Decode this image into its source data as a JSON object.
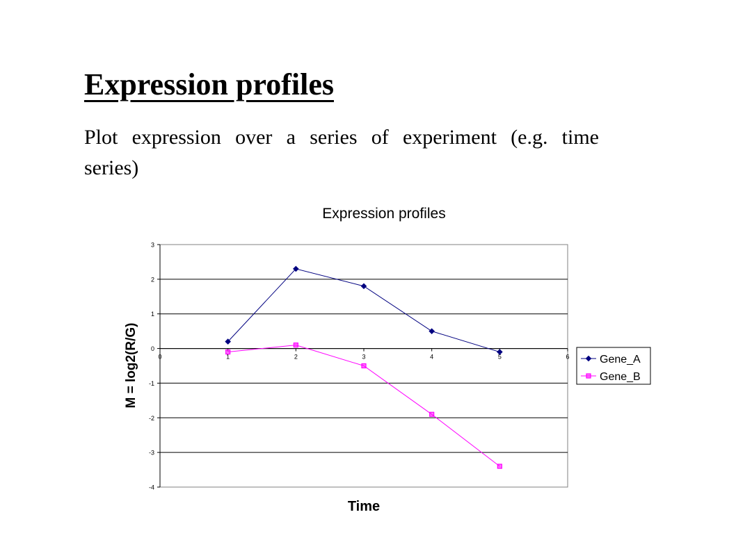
{
  "slide": {
    "title": "Expression profiles",
    "body": "Plot expression over a series of experiment (e.g. time series)"
  },
  "chart_data": {
    "type": "line",
    "title": "Expression profiles",
    "xlabel": "Time",
    "ylabel": "M = log2(R/G)",
    "xlim": [
      0,
      6
    ],
    "ylim": [
      -4,
      3
    ],
    "x_ticks": [
      0,
      1,
      2,
      3,
      4,
      5,
      6
    ],
    "y_ticks": [
      3,
      2,
      1,
      0,
      -1,
      -2,
      -3,
      -4
    ],
    "grid": "horizontal",
    "legend_position": "right",
    "series": [
      {
        "name": "Gene_A",
        "color": "#000080",
        "marker": "diamond",
        "x": [
          1,
          2,
          3,
          4,
          5
        ],
        "y": [
          0.2,
          2.3,
          1.8,
          0.5,
          -0.1
        ]
      },
      {
        "name": "Gene_B",
        "color": "#FF00FF",
        "marker": "square",
        "x": [
          1,
          2,
          3,
          4,
          5
        ],
        "y": [
          -0.1,
          0.1,
          -0.5,
          -1.9,
          -3.4
        ]
      }
    ]
  }
}
